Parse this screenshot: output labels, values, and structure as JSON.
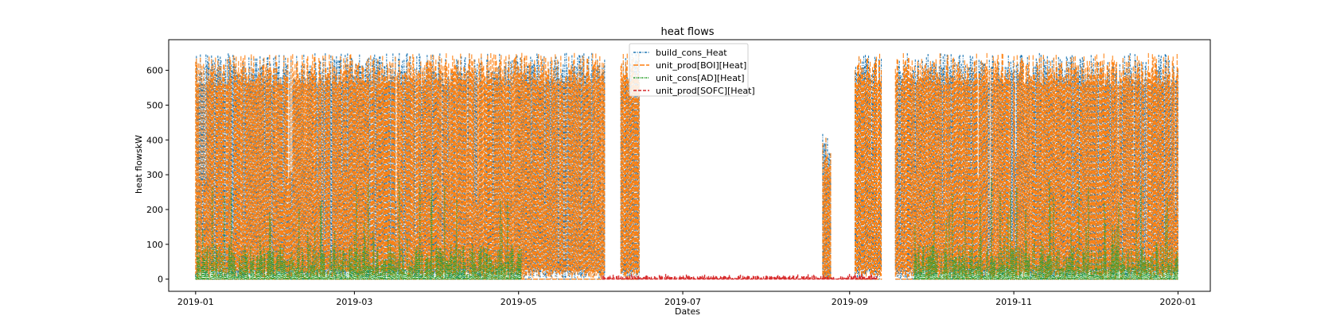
{
  "chart_data": {
    "type": "line",
    "title": "heat flows",
    "xlabel": "Dates",
    "ylabel": "heat flowskW",
    "x_range": [
      "2018-12-22",
      "2020-01-13"
    ],
    "ylim": [
      -35,
      688
    ],
    "x_ticks": [
      "2019-01",
      "2019-03",
      "2019-05",
      "2019-07",
      "2019-09",
      "2019-11",
      "2020-01"
    ],
    "y_ticks": [
      0,
      100,
      200,
      300,
      400,
      500,
      600
    ],
    "grid": false,
    "legend_position": "top-center",
    "series": [
      {
        "name": "build_cons_Heat",
        "color": "#1f77b4",
        "style": "dash-dot",
        "active_periods": [
          [
            "2019-01-01",
            "2019-06-01"
          ],
          [
            "2019-06-08",
            "2019-06-14"
          ],
          [
            "2019-09-03",
            "2019-09-12"
          ],
          [
            "2019-09-18",
            "2019-12-31"
          ]
        ],
        "spike_periods": [
          [
            "2019-08-22",
            "2019-08-24",
            440
          ]
        ],
        "peak": 650,
        "low": 0
      },
      {
        "name": "unit_prod[BOI][Heat]",
        "color": "#ff7f0e",
        "style": "long-dash",
        "active_periods": [
          [
            "2019-01-01",
            "2019-06-01"
          ],
          [
            "2019-06-08",
            "2019-06-14"
          ],
          [
            "2019-09-03",
            "2019-09-12"
          ],
          [
            "2019-09-18",
            "2019-12-31"
          ]
        ],
        "spike_periods": [
          [
            "2019-08-22",
            "2019-08-24",
            420
          ]
        ],
        "peak": 650,
        "low": 0
      },
      {
        "name": "unit_cons[AD][Heat]",
        "color": "#2ca02c",
        "style": "dash-dot-dot",
        "active_periods": [
          [
            "2019-01-01",
            "2019-05-01"
          ],
          [
            "2019-09-25",
            "2019-12-31"
          ]
        ],
        "peak": 300,
        "typical": 100,
        "low": 0
      },
      {
        "name": "unit_prod[SOFC][Heat]",
        "color": "#d62728",
        "style": "dashed",
        "active_periods": [
          [
            "2019-06-01",
            "2019-09-10"
          ]
        ],
        "peak": 15,
        "typical": 10,
        "low": 0
      }
    ]
  }
}
